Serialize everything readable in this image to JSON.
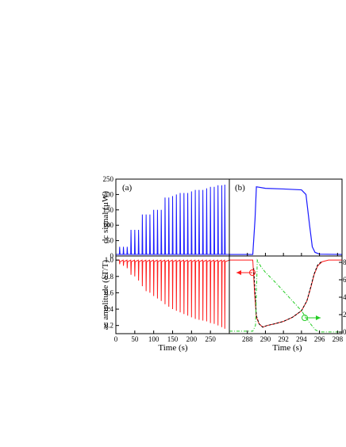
{
  "chart_data": [
    {
      "id": "a_top",
      "panel_label": "(a)",
      "type": "line",
      "ylabel": "dc signal (µW)",
      "xlim": [
        0,
        300
      ],
      "ylim": [
        0,
        250
      ],
      "yticks": [
        0,
        50,
        100,
        150,
        200,
        250
      ],
      "color": "#1a1aff",
      "baseline": 5,
      "pulse_times": [
        10,
        20,
        30,
        40,
        50,
        60,
        70,
        80,
        90,
        100,
        110,
        120,
        130,
        140,
        150,
        160,
        170,
        180,
        190,
        200,
        210,
        220,
        230,
        240,
        250,
        260,
        270,
        280,
        288
      ],
      "pulse_peaks": [
        30,
        30,
        30,
        85,
        85,
        85,
        135,
        135,
        135,
        150,
        150,
        150,
        190,
        190,
        195,
        200,
        205,
        205,
        205,
        210,
        215,
        215,
        215,
        220,
        225,
        225,
        230,
        230,
        232
      ]
    },
    {
      "id": "a_bottom",
      "type": "line",
      "xlabel": "Time (s)",
      "ylabel": "ac amplitude (δT/T)",
      "xlim": [
        0,
        300
      ],
      "ylim": [
        0.1,
        1.05
      ],
      "xticks": [
        0,
        50,
        100,
        150,
        200,
        250
      ],
      "yticks": [
        0.2,
        0.4,
        0.6,
        0.8,
        1.0
      ],
      "ytick_labels": [
        "0.2",
        "0.4",
        "0.6",
        "0.8",
        "1.0"
      ],
      "color": "#ff1a1a",
      "baseline": 1.0,
      "dip_times": [
        10,
        20,
        30,
        40,
        50,
        60,
        70,
        80,
        90,
        100,
        110,
        120,
        130,
        140,
        150,
        160,
        170,
        180,
        190,
        200,
        210,
        220,
        230,
        240,
        250,
        260,
        270,
        280,
        288
      ],
      "dip_minima": [
        0.95,
        0.93,
        0.9,
        0.82,
        0.8,
        0.75,
        0.68,
        0.62,
        0.6,
        0.56,
        0.53,
        0.5,
        0.46,
        0.43,
        0.4,
        0.38,
        0.36,
        0.34,
        0.32,
        0.3,
        0.28,
        0.27,
        0.26,
        0.25,
        0.23,
        0.22,
        0.2,
        0.18,
        0.16
      ]
    },
    {
      "id": "b_top",
      "panel_label": "(b)",
      "type": "line",
      "xlim": [
        286,
        298.5
      ],
      "ylim": [
        0,
        250
      ],
      "color": "#1a1aff",
      "x": [
        286,
        288.6,
        288.85,
        289.0,
        290,
        292,
        294.0,
        294.5,
        294.9,
        295.2,
        295.5,
        296,
        298.5
      ],
      "y": [
        5,
        5,
        120,
        225,
        220,
        218,
        215,
        200,
        100,
        30,
        12,
        6,
        5
      ]
    },
    {
      "id": "b_bottom",
      "type": "line",
      "xlabel": "Time (s)",
      "xlim": [
        286,
        298.5
      ],
      "ylim": [
        0.1,
        1.05
      ],
      "xticks": [
        288,
        290,
        292,
        294,
        296,
        298
      ],
      "ytick_labels_right": [
        "0",
        "2",
        "4",
        "6",
        "8"
      ],
      "series": [
        {
          "color": "#ff1a1a",
          "style": "solid",
          "x": [
            286,
            288.6,
            288.8,
            289.0,
            289.3,
            289.7,
            290.2,
            291,
            292,
            293,
            294,
            294.6,
            295.0,
            295.4,
            295.8,
            296.3,
            297,
            298.5
          ],
          "y": [
            1.0,
            1.0,
            0.6,
            0.3,
            0.22,
            0.18,
            0.2,
            0.22,
            0.25,
            0.3,
            0.38,
            0.5,
            0.65,
            0.82,
            0.93,
            0.98,
            1.0,
            1.0
          ]
        },
        {
          "color": "#000000",
          "style": "dashed",
          "x": [
            288.7,
            289.0,
            289.3,
            289.7,
            290.2,
            291,
            292,
            293,
            294,
            294.6,
            295.0,
            295.4,
            295.8,
            296.3
          ],
          "y": [
            0.9,
            0.32,
            0.22,
            0.18,
            0.2,
            0.22,
            0.25,
            0.3,
            0.38,
            0.5,
            0.66,
            0.83,
            0.94,
            0.99
          ]
        },
        {
          "color": "#22cc22",
          "style": "dashdot",
          "axis": "right",
          "x": [
            286,
            288.6,
            288.9,
            289.1,
            289.5,
            290,
            291,
            292,
            293,
            294,
            294.5,
            295,
            295.5,
            296,
            298.5
          ],
          "y": [
            0.13,
            0.13,
            0.2,
            1.0,
            0.92,
            0.85,
            0.74,
            0.62,
            0.5,
            0.38,
            0.3,
            0.22,
            0.15,
            0.12,
            0.12
          ]
        }
      ]
    }
  ]
}
